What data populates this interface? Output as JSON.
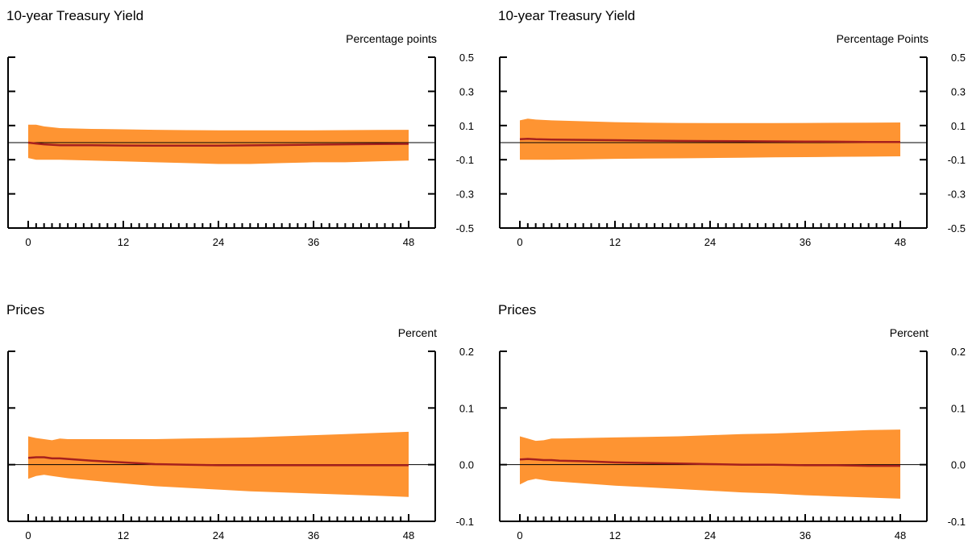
{
  "colors": {
    "band": "#fe9432",
    "line": "#a6201d",
    "axis": "#000000"
  },
  "chart_data": [
    {
      "type": "area",
      "title": "10-year Treasury Yield",
      "unit": "Percentage points",
      "xlabel": "",
      "ylabel": "",
      "xlim": [
        0,
        48
      ],
      "ylim": [
        -0.5,
        0.5
      ],
      "xticks": [
        "0",
        "12",
        "24",
        "36",
        "48"
      ],
      "yticks": [
        "0.5",
        "0.3",
        "0.1",
        "-0.1",
        "-0.3",
        "-0.5"
      ],
      "zero_line": true,
      "grid": false,
      "x": [
        0,
        1,
        2,
        4,
        8,
        12,
        16,
        20,
        24,
        28,
        32,
        36,
        40,
        44,
        48
      ],
      "line": [
        0.0,
        -0.005,
        -0.01,
        -0.015,
        -0.015,
        -0.017,
        -0.018,
        -0.018,
        -0.018,
        -0.016,
        -0.014,
        -0.012,
        -0.01,
        -0.008,
        -0.007
      ],
      "upper": [
        0.105,
        0.105,
        0.095,
        0.085,
        0.08,
        0.078,
        0.075,
        0.073,
        0.072,
        0.072,
        0.072,
        0.072,
        0.073,
        0.074,
        0.075
      ],
      "lower": [
        -0.09,
        -0.1,
        -0.1,
        -0.1,
        -0.105,
        -0.11,
        -0.115,
        -0.12,
        -0.125,
        -0.125,
        -0.12,
        -0.115,
        -0.115,
        -0.11,
        -0.105
      ]
    },
    {
      "type": "area",
      "title": "10-year Treasury Yield",
      "unit": "Percentage Points",
      "xlabel": "",
      "ylabel": "",
      "xlim": [
        0,
        48
      ],
      "ylim": [
        -0.5,
        0.5
      ],
      "xticks": [
        "0",
        "12",
        "24",
        "36",
        "48"
      ],
      "yticks": [
        "0.5",
        "0.3",
        "0.1",
        "-0.1",
        "-0.3",
        "-0.5"
      ],
      "zero_line": true,
      "grid": false,
      "x": [
        0,
        1,
        2,
        4,
        8,
        12,
        16,
        20,
        24,
        28,
        32,
        36,
        40,
        44,
        48
      ],
      "line": [
        0.02,
        0.022,
        0.02,
        0.018,
        0.016,
        0.014,
        0.012,
        0.01,
        0.009,
        0.008,
        0.007,
        0.006,
        0.005,
        0.004,
        0.004
      ],
      "upper": [
        0.13,
        0.14,
        0.135,
        0.13,
        0.125,
        0.12,
        0.117,
        0.115,
        0.114,
        0.114,
        0.114,
        0.115,
        0.116,
        0.117,
        0.118
      ],
      "lower": [
        -0.1,
        -0.1,
        -0.1,
        -0.1,
        -0.098,
        -0.095,
        -0.093,
        -0.092,
        -0.09,
        -0.088,
        -0.086,
        -0.085,
        -0.083,
        -0.082,
        -0.08
      ]
    },
    {
      "type": "area",
      "title": "Prices",
      "unit": "Percent",
      "xlabel": "",
      "ylabel": "",
      "xlim": [
        0,
        48
      ],
      "ylim": [
        -0.1,
        0.2
      ],
      "xticks": [
        "0",
        "12",
        "24",
        "36",
        "48"
      ],
      "yticks": [
        "0.2",
        "0.1",
        "0.0",
        "-0.1"
      ],
      "zero_line": true,
      "grid": false,
      "x": [
        0,
        1,
        2,
        3,
        4,
        5,
        8,
        12,
        16,
        20,
        24,
        28,
        32,
        36,
        40,
        44,
        48
      ],
      "line": [
        0.012,
        0.013,
        0.013,
        0.011,
        0.011,
        0.01,
        0.007,
        0.004,
        0.001,
        0.0,
        -0.001,
        -0.001,
        -0.001,
        -0.001,
        -0.001,
        -0.001,
        -0.001
      ],
      "upper": [
        0.05,
        0.047,
        0.045,
        0.043,
        0.046,
        0.045,
        0.045,
        0.045,
        0.045,
        0.046,
        0.047,
        0.048,
        0.05,
        0.052,
        0.054,
        0.056,
        0.058
      ],
      "lower": [
        -0.025,
        -0.02,
        -0.018,
        -0.02,
        -0.022,
        -0.024,
        -0.028,
        -0.033,
        -0.038,
        -0.041,
        -0.044,
        -0.047,
        -0.049,
        -0.051,
        -0.053,
        -0.055,
        -0.057
      ]
    },
    {
      "type": "area",
      "title": "Prices",
      "unit": "Percent",
      "xlabel": "",
      "ylabel": "",
      "xlim": [
        0,
        48
      ],
      "ylim": [
        -0.1,
        0.2
      ],
      "xticks": [
        "0",
        "12",
        "24",
        "36",
        "48"
      ],
      "yticks": [
        "0.2",
        "0.1",
        "0.0",
        "-0.1"
      ],
      "zero_line": true,
      "grid": false,
      "x": [
        0,
        1,
        2,
        3,
        4,
        5,
        8,
        12,
        16,
        20,
        24,
        28,
        32,
        36,
        40,
        44,
        48
      ],
      "line": [
        0.009,
        0.01,
        0.009,
        0.008,
        0.008,
        0.007,
        0.006,
        0.004,
        0.003,
        0.002,
        0.001,
        0.0,
        0.0,
        -0.001,
        -0.001,
        -0.002,
        -0.002
      ],
      "upper": [
        0.05,
        0.046,
        0.042,
        0.043,
        0.046,
        0.046,
        0.047,
        0.048,
        0.049,
        0.05,
        0.052,
        0.054,
        0.055,
        0.057,
        0.059,
        0.061,
        0.062
      ],
      "lower": [
        -0.035,
        -0.028,
        -0.025,
        -0.027,
        -0.029,
        -0.03,
        -0.033,
        -0.037,
        -0.04,
        -0.043,
        -0.046,
        -0.049,
        -0.051,
        -0.054,
        -0.056,
        -0.058,
        -0.06
      ]
    }
  ]
}
